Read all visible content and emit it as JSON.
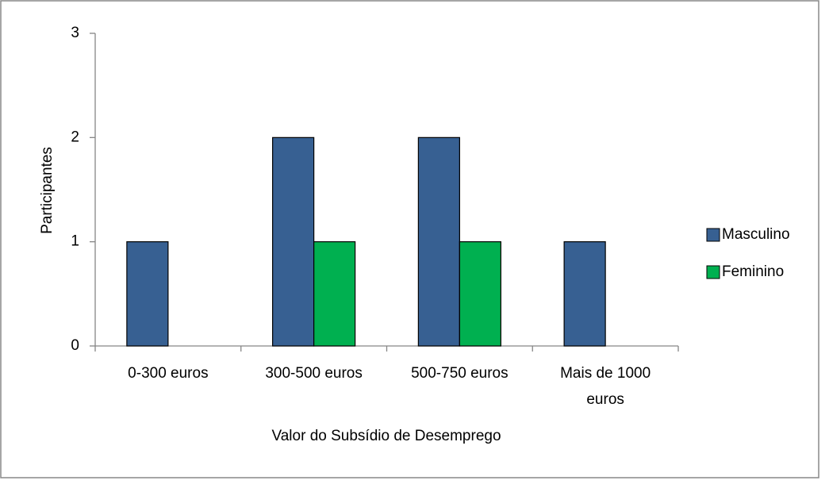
{
  "chart_data": {
    "type": "bar",
    "x_label": "Valor do Subsídio de Desemprego",
    "y_label": "Participantes",
    "categories": [
      "0-300 euros",
      "300-500 euros",
      "500-750 euros",
      "Mais de 1000 euros"
    ],
    "series": [
      {
        "name": "Masculino",
        "color": "#376092",
        "values": [
          1,
          2,
          2,
          1
        ]
      },
      {
        "name": "Feminino",
        "color": "#00b050",
        "values": [
          0,
          1,
          1,
          0
        ]
      }
    ],
    "ylim": [
      0,
      3
    ],
    "yticks": [
      0,
      1,
      2,
      3
    ],
    "grid": false,
    "legend": "right"
  }
}
